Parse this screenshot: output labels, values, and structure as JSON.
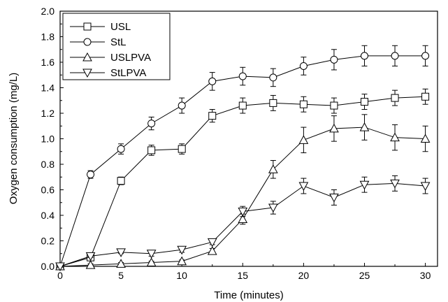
{
  "chart_data": {
    "type": "line",
    "xlabel": "Time (minutes)",
    "ylabel": "Oxygen consumption (mg/L)",
    "xlim": [
      0,
      31
    ],
    "ylim": [
      0,
      2.0
    ],
    "xticks": [
      "0",
      "5",
      "10",
      "15",
      "20",
      "25",
      "30"
    ],
    "yticks": [
      "0.0",
      "0.2",
      "0.4",
      "0.6",
      "0.8",
      "1.0",
      "1.2",
      "1.4",
      "1.6",
      "1.8",
      "2.0"
    ],
    "x": [
      0,
      2.5,
      5,
      7.5,
      10,
      12.5,
      15,
      17.5,
      20,
      22.5,
      25,
      27.5,
      30
    ],
    "legend_position": "top-left",
    "grid": false,
    "series": [
      {
        "name": "USL",
        "marker": "square",
        "values": [
          0.0,
          0.07,
          0.67,
          0.91,
          0.92,
          1.18,
          1.26,
          1.28,
          1.27,
          1.26,
          1.29,
          1.32,
          1.33
        ],
        "errors": [
          0.01,
          0.02,
          0.03,
          0.04,
          0.04,
          0.05,
          0.06,
          0.06,
          0.06,
          0.06,
          0.06,
          0.06,
          0.06
        ]
      },
      {
        "name": "StL",
        "marker": "circle",
        "values": [
          0.0,
          0.72,
          0.92,
          1.12,
          1.26,
          1.45,
          1.49,
          1.48,
          1.57,
          1.62,
          1.65,
          1.65,
          1.65
        ],
        "errors": [
          0.01,
          0.03,
          0.04,
          0.05,
          0.06,
          0.07,
          0.07,
          0.07,
          0.07,
          0.08,
          0.08,
          0.08,
          0.08
        ]
      },
      {
        "name": "USLPVA",
        "marker": "triangle-up",
        "values": [
          0.0,
          0.01,
          0.02,
          0.03,
          0.04,
          0.12,
          0.37,
          0.76,
          0.99,
          1.08,
          1.09,
          1.01,
          1.0
        ],
        "errors": [
          0.005,
          0.01,
          0.01,
          0.01,
          0.01,
          0.02,
          0.04,
          0.07,
          0.1,
          0.1,
          0.1,
          0.1,
          0.1
        ]
      },
      {
        "name": "StLPVA",
        "marker": "triangle-down",
        "values": [
          0.0,
          0.08,
          0.11,
          0.1,
          0.13,
          0.19,
          0.43,
          0.46,
          0.63,
          0.54,
          0.64,
          0.65,
          0.63
        ],
        "errors": [
          0.005,
          0.01,
          0.01,
          0.02,
          0.02,
          0.02,
          0.04,
          0.05,
          0.06,
          0.06,
          0.06,
          0.06,
          0.06
        ]
      }
    ]
  }
}
